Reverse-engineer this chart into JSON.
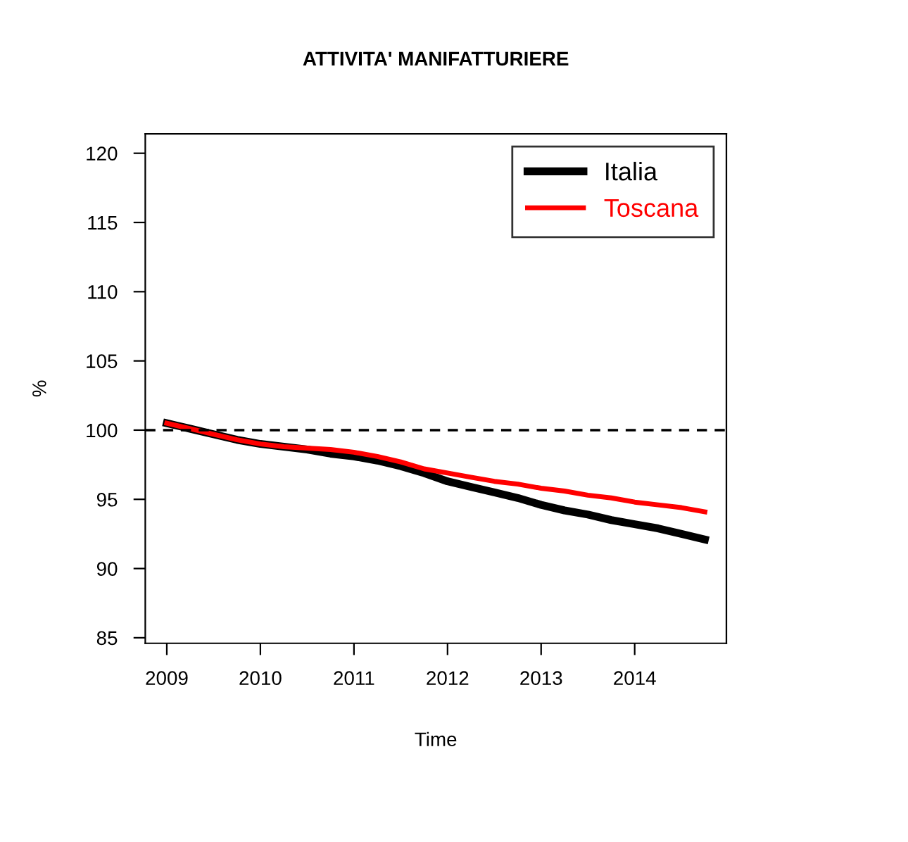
{
  "chart_data": {
    "type": "line",
    "title": "ATTIVITA' MANIFATTURIERE",
    "xlabel": "Time",
    "ylabel": "%",
    "x": [
      2009.0,
      2009.25,
      2009.5,
      2009.75,
      2010.0,
      2010.25,
      2010.5,
      2010.75,
      2011.0,
      2011.25,
      2011.5,
      2011.75,
      2012.0,
      2012.25,
      2012.5,
      2012.75,
      2013.0,
      2013.25,
      2013.5,
      2013.75,
      2014.0,
      2014.25,
      2014.5,
      2014.75
    ],
    "series": [
      {
        "name": "Italia",
        "color": "#000000",
        "values": [
          100.5,
          100.1,
          99.7,
          99.3,
          99.0,
          98.8,
          98.6,
          98.3,
          98.1,
          97.8,
          97.4,
          96.9,
          96.3,
          95.9,
          95.5,
          95.1,
          94.6,
          94.2,
          93.9,
          93.5,
          93.2,
          92.9,
          92.5,
          92.1
        ]
      },
      {
        "name": "Toscana",
        "color": "#ff0000",
        "values": [
          100.5,
          100.1,
          99.7,
          99.3,
          99.0,
          98.8,
          98.7,
          98.6,
          98.4,
          98.1,
          97.7,
          97.2,
          96.9,
          96.6,
          96.3,
          96.1,
          95.8,
          95.6,
          95.3,
          95.1,
          94.8,
          94.6,
          94.4,
          94.1
        ]
      }
    ],
    "xlim": [
      2008.77,
      2014.98
    ],
    "ylim": [
      84.6,
      121.4
    ],
    "xticks": [
      2009,
      2010,
      2011,
      2012,
      2013,
      2014
    ],
    "yticks": [
      85,
      90,
      95,
      100,
      105,
      110,
      115,
      120
    ],
    "ref_lines": [
      {
        "axis": "y",
        "value": 100,
        "label": null,
        "color": "#000000",
        "line_style": "dashed"
      }
    ],
    "grid": false,
    "legend": "top right",
    "marker": "none",
    "line_style": "solid"
  }
}
